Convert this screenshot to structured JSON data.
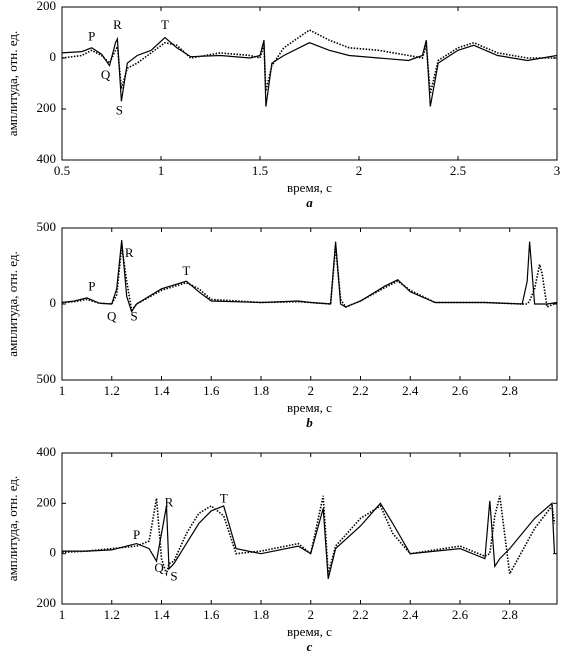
{
  "chart_data": [
    {
      "type": "line",
      "xlabel": "время, с",
      "ylabel": "амплитуда, отн. ед.",
      "caption": "a",
      "xlim": [
        0.5,
        3
      ],
      "ylim": [
        -400,
        200
      ],
      "xticks": [
        0.5,
        1,
        1.5,
        2,
        2.5,
        3
      ],
      "yticks": [
        200,
        0,
        {
          "value": -200,
          "label": "200"
        },
        {
          "value": -400,
          "label": "400"
        }
      ],
      "x": [
        0.5,
        0.6,
        0.65,
        0.7,
        0.74,
        0.77,
        0.78,
        0.8,
        0.83,
        0.88,
        0.95,
        1.02,
        1.08,
        1.15,
        1.3,
        1.45,
        1.5,
        1.52,
        1.53,
        1.56,
        1.62,
        1.75,
        1.85,
        1.95,
        2.1,
        2.25,
        2.32,
        2.34,
        2.36,
        2.4,
        2.5,
        2.58,
        2.7,
        2.85,
        3
      ],
      "series": [
        {
          "color": "#000000",
          "style": "solid",
          "values": [
            20,
            25,
            40,
            15,
            -30,
            60,
            75,
            -170,
            -20,
            10,
            30,
            80,
            40,
            5,
            10,
            0,
            10,
            70,
            -190,
            -20,
            10,
            60,
            30,
            10,
            0,
            -10,
            10,
            70,
            -190,
            -20,
            30,
            50,
            10,
            -10,
            10
          ]
        },
        {
          "color": "#000000",
          "style": "dotted",
          "values": [
            0,
            10,
            30,
            10,
            -20,
            30,
            45,
            -120,
            -40,
            -20,
            20,
            60,
            50,
            0,
            20,
            10,
            0,
            50,
            -130,
            -30,
            40,
            110,
            70,
            40,
            30,
            10,
            0,
            50,
            -140,
            -10,
            40,
            60,
            20,
            0,
            0
          ]
        }
      ],
      "annotations": [
        {
          "text": "P",
          "x": 0.65,
          "y": 80
        },
        {
          "text": "R",
          "x": 0.78,
          "y": 125
        },
        {
          "text": "Q",
          "x": 0.72,
          "y": -70
        },
        {
          "text": "S",
          "x": 0.79,
          "y": -210
        },
        {
          "text": "T",
          "x": 1.02,
          "y": 125
        }
      ]
    },
    {
      "type": "line",
      "xlabel": "время, с",
      "ylabel": "амплитуда, отн. ед.",
      "caption": "b",
      "xlim": [
        1,
        2.99
      ],
      "ylim": [
        -500,
        500
      ],
      "xticks": [
        1,
        1.2,
        1.4,
        1.6,
        1.8,
        2,
        2.2,
        2.4,
        2.6,
        2.8
      ],
      "yticks": [
        500,
        0,
        {
          "value": -500,
          "label": "500"
        }
      ],
      "x": [
        1,
        1.05,
        1.1,
        1.15,
        1.2,
        1.22,
        1.24,
        1.26,
        1.28,
        1.3,
        1.4,
        1.5,
        1.55,
        1.6,
        1.8,
        1.95,
        2.0,
        2.08,
        2.1,
        2.12,
        2.14,
        2.2,
        2.3,
        2.35,
        2.4,
        2.5,
        2.7,
        2.85,
        2.87,
        2.88,
        2.9,
        2.92,
        2.93,
        2.95,
        2.99
      ],
      "series": [
        {
          "color": "#000000",
          "style": "solid",
          "values": [
            10,
            20,
            40,
            5,
            0,
            100,
            420,
            50,
            -50,
            0,
            100,
            150,
            80,
            20,
            10,
            20,
            10,
            0,
            410,
            0,
            -20,
            20,
            120,
            160,
            80,
            10,
            10,
            0,
            150,
            410,
            0,
            0,
            0,
            0,
            10
          ]
        },
        {
          "color": "#000000",
          "style": "dotted",
          "values": [
            10,
            15,
            30,
            5,
            0,
            60,
            380,
            150,
            -40,
            0,
            90,
            140,
            100,
            30,
            10,
            15,
            10,
            0,
            380,
            30,
            -20,
            20,
            110,
            150,
            90,
            10,
            10,
            0,
            0,
            20,
            100,
            260,
            200,
            -20,
            10
          ]
        }
      ],
      "annotations": [
        {
          "text": "P",
          "x": 1.12,
          "y": 110
        },
        {
          "text": "R",
          "x": 1.27,
          "y": 330
        },
        {
          "text": "Q",
          "x": 1.2,
          "y": -90
        },
        {
          "text": "S",
          "x": 1.29,
          "y": -90
        },
        {
          "text": "T",
          "x": 1.5,
          "y": 210
        }
      ]
    },
    {
      "type": "line",
      "xlabel": "время, с",
      "ylabel": "амплитуда, отн. ед.",
      "caption": "c",
      "xlim": [
        1,
        2.99
      ],
      "ylim": [
        -200,
        400
      ],
      "xticks": [
        1,
        1.2,
        1.4,
        1.6,
        1.8,
        2,
        2.2,
        2.4,
        2.6,
        2.8
      ],
      "yticks": [
        400,
        200,
        0,
        {
          "value": -200,
          "label": "200"
        }
      ],
      "x": [
        1,
        1.1,
        1.2,
        1.3,
        1.35,
        1.38,
        1.4,
        1.42,
        1.43,
        1.45,
        1.5,
        1.55,
        1.6,
        1.65,
        1.7,
        1.8,
        1.95,
        2.0,
        2.05,
        2.07,
        2.1,
        2.2,
        2.28,
        2.33,
        2.4,
        2.6,
        2.7,
        2.72,
        2.74,
        2.76,
        2.8,
        2.9,
        2.97,
        2.98
      ],
      "series": [
        {
          "color": "#000000",
          "style": "solid",
          "values": [
            10,
            10,
            15,
            40,
            20,
            -30,
            80,
            190,
            -60,
            -40,
            40,
            120,
            170,
            190,
            20,
            0,
            30,
            0,
            180,
            -100,
            20,
            110,
            200,
            120,
            0,
            20,
            -20,
            210,
            -50,
            -20,
            20,
            140,
            200,
            0
          ]
        },
        {
          "color": "#000000",
          "style": "dotted",
          "values": [
            5,
            10,
            20,
            30,
            50,
            220,
            -20,
            -80,
            -40,
            -30,
            80,
            160,
            190,
            150,
            0,
            10,
            40,
            0,
            230,
            -80,
            30,
            140,
            190,
            80,
            0,
            30,
            -10,
            0,
            150,
            230,
            -80,
            100,
            190,
            120
          ]
        }
      ],
      "annotations": [
        {
          "text": "P",
          "x": 1.3,
          "y": 70
        },
        {
          "text": "R",
          "x": 1.43,
          "y": 200
        },
        {
          "text": "Q",
          "x": 1.39,
          "y": -60
        },
        {
          "text": "S",
          "x": 1.45,
          "y": -95
        },
        {
          "text": "T",
          "x": 1.65,
          "y": 215
        }
      ]
    }
  ]
}
